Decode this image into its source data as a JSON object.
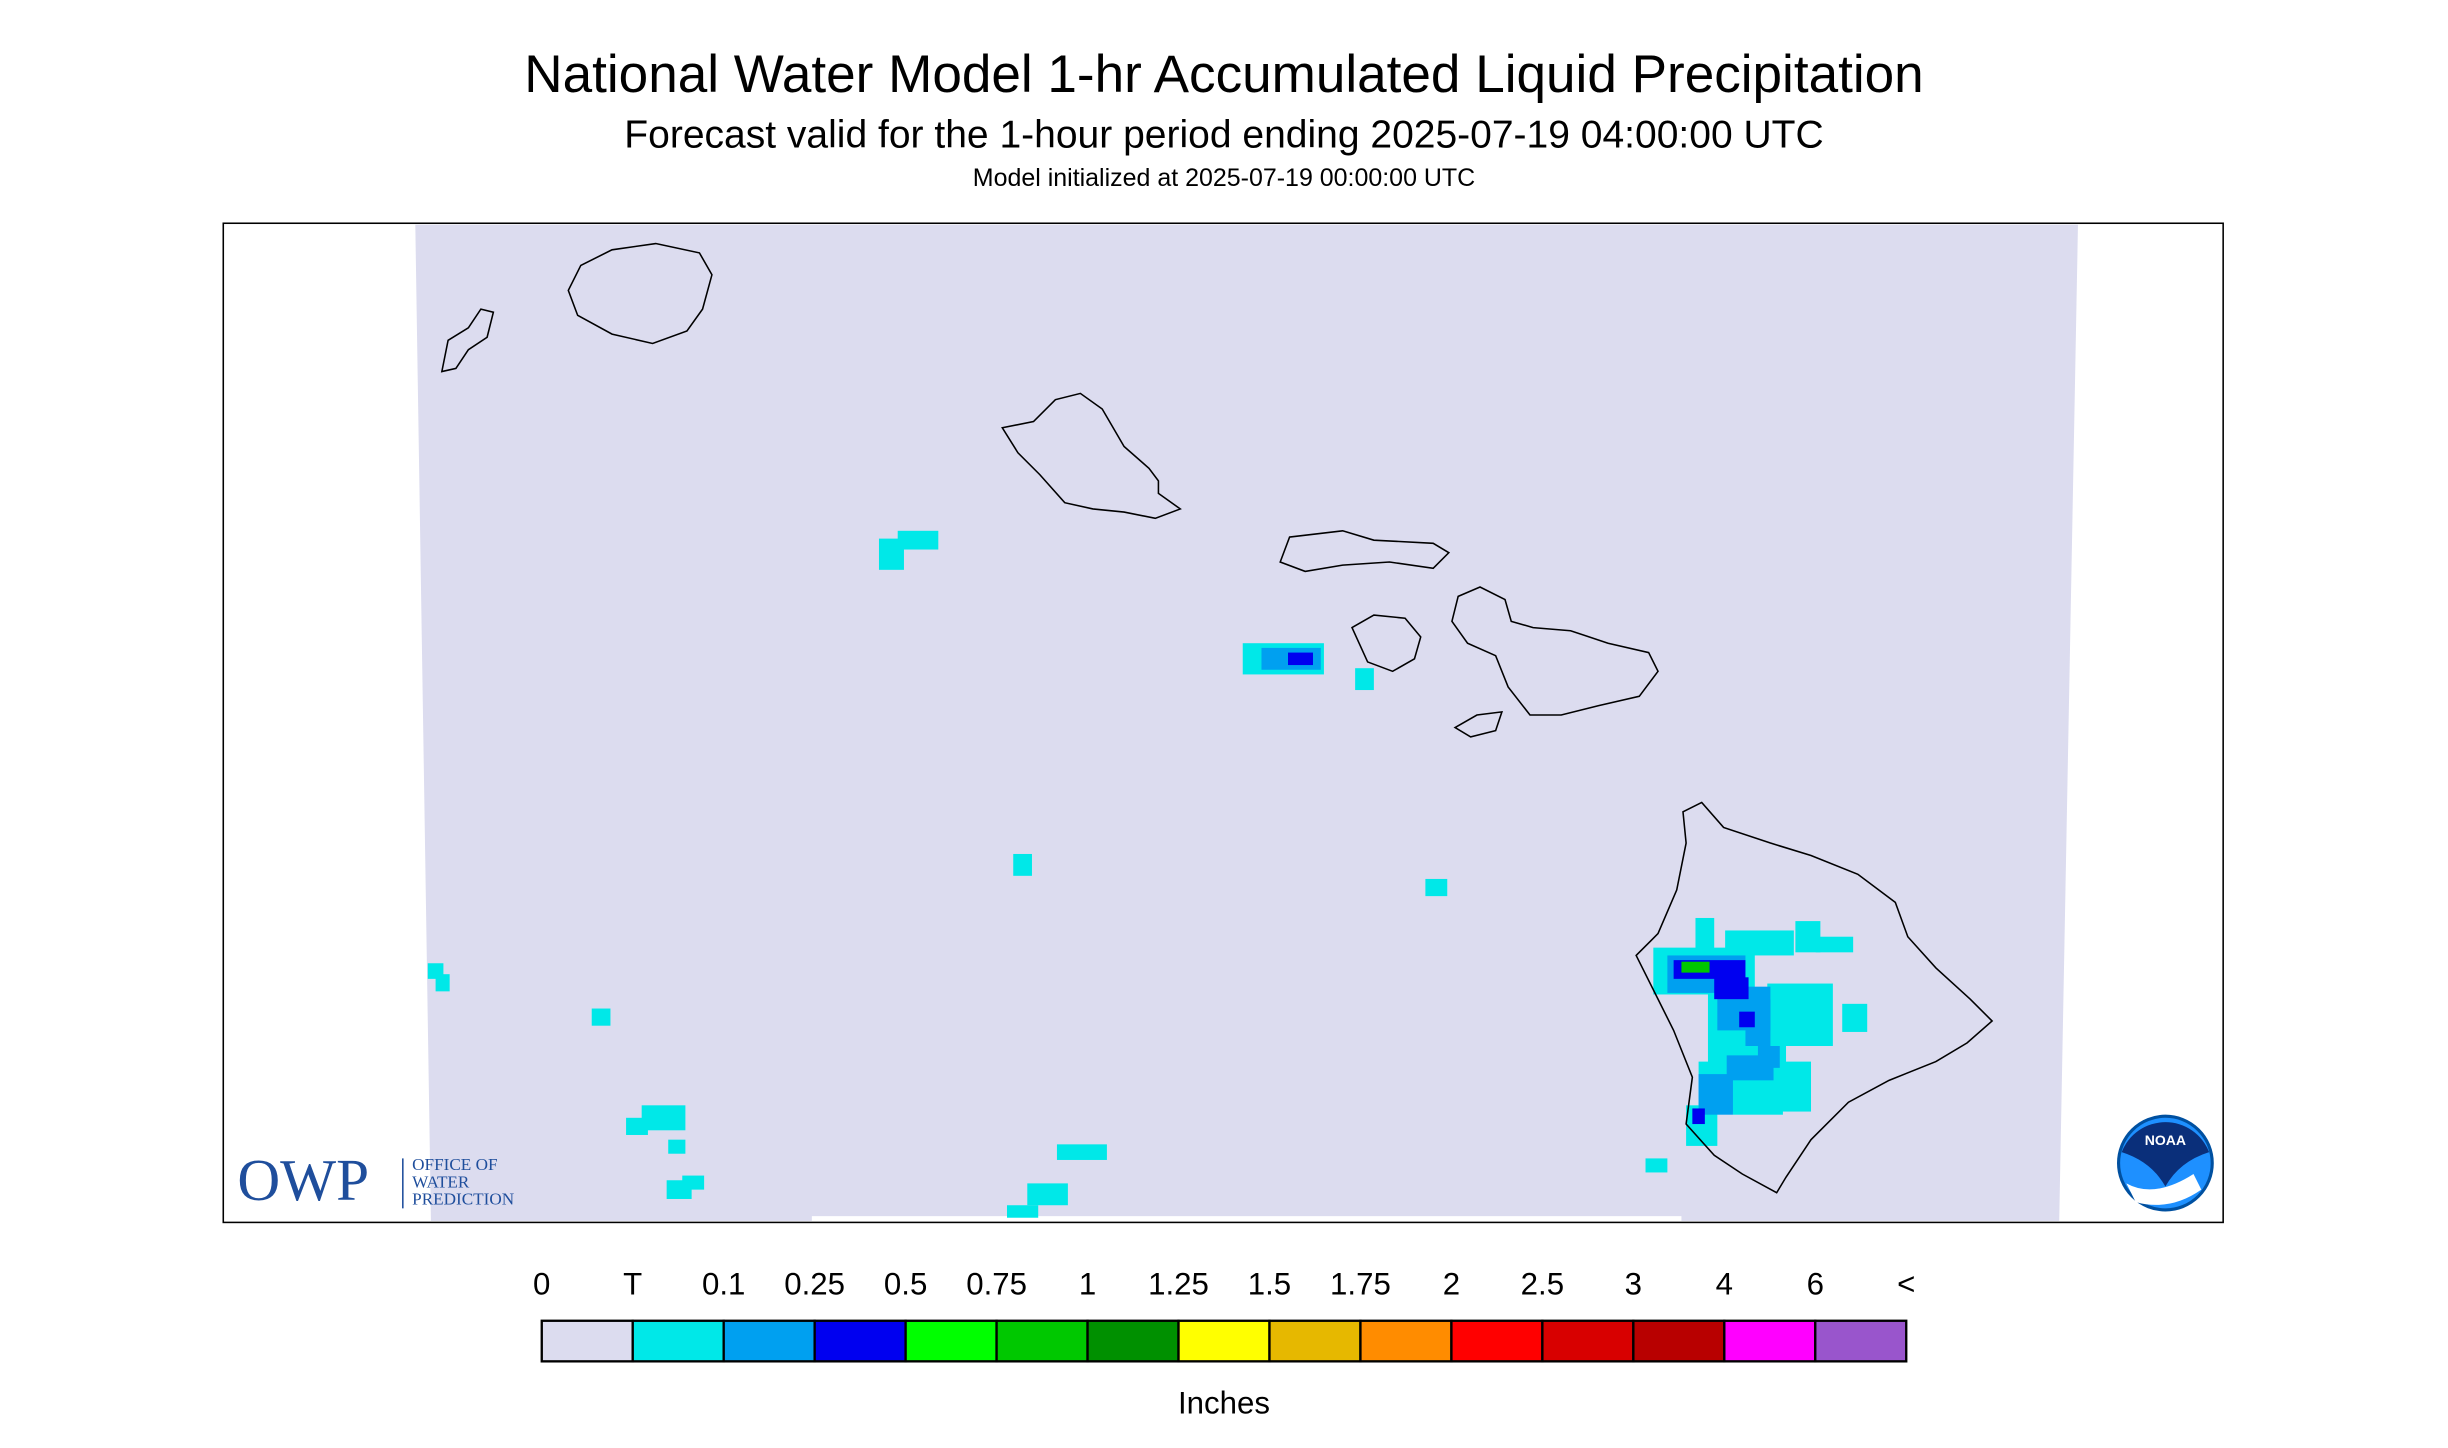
{
  "header": {
    "title": "National Water Model 1-hr Accumulated Liquid Precipitation",
    "subtitle": "Forecast valid for the 1-hour period ending 2025-07-19 04:00:00 UTC",
    "init": "Model initialized at 2025-07-19 00:00:00 UTC"
  },
  "legend": {
    "labels": [
      "0",
      "T",
      "0.1",
      "0.25",
      "0.5",
      "0.75",
      "1",
      "1.25",
      "1.5",
      "1.75",
      "2",
      "2.5",
      "3",
      "4",
      "6",
      "<"
    ],
    "colors": [
      "#dcdcef",
      "#00e8e8",
      "#00a0f0",
      "#0000f0",
      "#00ff00",
      "#00c800",
      "#009000",
      "#ffff00",
      "#e6b800",
      "#ff8c00",
      "#ff0000",
      "#d80000",
      "#b80000",
      "#ff00ff",
      "#9955cc"
    ],
    "unit": "Inches"
  },
  "logos": {
    "owp": "OWP",
    "office": [
      "OFFICE OF",
      "WATER",
      "PREDICTION"
    ],
    "noaa": "NOAA"
  }
}
